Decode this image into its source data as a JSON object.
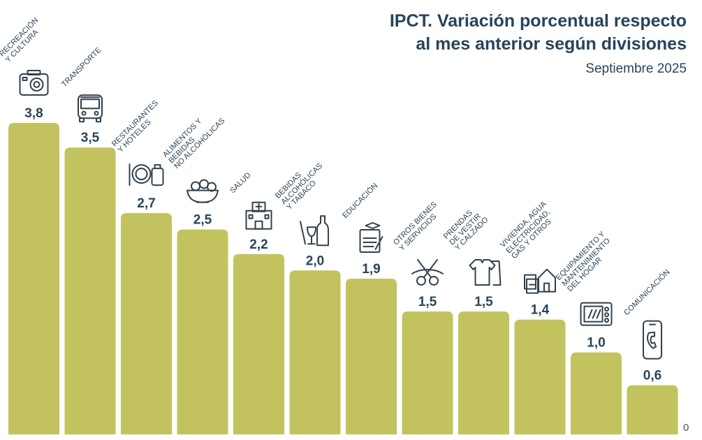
{
  "title_lines": [
    "IPCT. Variación porcentual respecto",
    "al mes anterior según divisiones"
  ],
  "subtitle": "Septiembre 2025",
  "colors": {
    "bar": "#c2c35f",
    "text": "#27445b",
    "icon": "#31414e"
  },
  "chart_data": {
    "type": "bar",
    "title": "IPCT. Variación porcentual respecto al mes anterior según divisiones",
    "subtitle": "Septiembre 2025",
    "ylim": [
      0,
      3.8
    ],
    "ytick_labels": [
      "0"
    ],
    "categories": [
      {
        "label_lines": [
          "RECREACIÓN",
          "Y CULTURA"
        ],
        "icon": "camera-icon",
        "value": 3.8,
        "value_label": "3,8"
      },
      {
        "label_lines": [
          "TRANSPORTE"
        ],
        "icon": "bus-icon",
        "value": 3.5,
        "value_label": "3,5"
      },
      {
        "label_lines": [
          "RESTAURANTES",
          "Y HOTELES"
        ],
        "icon": "plate-and-luggage-icon",
        "value": 2.7,
        "value_label": "2,7"
      },
      {
        "label_lines": [
          "ALIMENTOS Y",
          "BEBIDAS",
          "NO ALCOHÓLICAS"
        ],
        "icon": "fruit-bowl-icon",
        "value": 2.5,
        "value_label": "2,5"
      },
      {
        "label_lines": [
          "SALUD"
        ],
        "icon": "hospital-icon",
        "value": 2.2,
        "value_label": "2,2"
      },
      {
        "label_lines": [
          "BEBIDAS",
          "ALCOHÓLICAS",
          "Y TABACO"
        ],
        "icon": "bottle-glass-cigarette-icon",
        "value": 2.0,
        "value_label": "2,0"
      },
      {
        "label_lines": [
          "EDUCACIÓN"
        ],
        "icon": "diploma-icon",
        "value": 1.9,
        "value_label": "1,9"
      },
      {
        "label_lines": [
          "OTROS BIENES",
          "Y SERVICIOS"
        ],
        "icon": "scissors-icon",
        "value": 1.5,
        "value_label": "1,5"
      },
      {
        "label_lines": [
          "PRENDAS",
          "DE VESTIR",
          "Y CALZADO"
        ],
        "icon": "clothing-icon",
        "value": 1.5,
        "value_label": "1,5"
      },
      {
        "label_lines": [
          "VIVIENDA, AGUA",
          "ELECTRICIDAD,",
          "GAS Y OTROS"
        ],
        "icon": "house-bills-icon",
        "value": 1.4,
        "value_label": "1,4"
      },
      {
        "label_lines": [
          "EQUIPAMIENTO Y",
          "MANTENIMIENTO",
          "DEL HOGAR"
        ],
        "icon": "microwave-icon",
        "value": 1.0,
        "value_label": "1,0"
      },
      {
        "label_lines": [
          "COMUNICACIÓN"
        ],
        "icon": "phone-icon",
        "value": 0.6,
        "value_label": "0,6"
      }
    ]
  }
}
